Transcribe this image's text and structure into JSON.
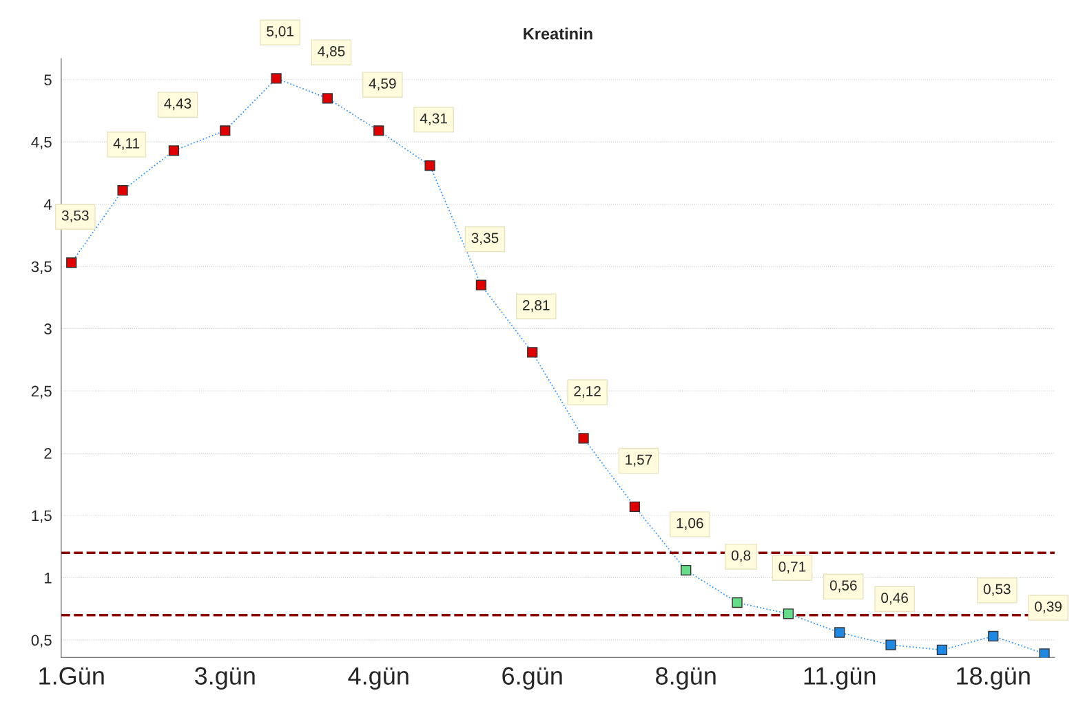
{
  "chart_data": {
    "type": "line",
    "title": "Kreatinin",
    "categories": [
      "1.Gün",
      null,
      null,
      "3.gün",
      null,
      null,
      "4.gün",
      null,
      null,
      "6.gün",
      null,
      null,
      "8.gün",
      null,
      null,
      "11.gün",
      null,
      null,
      "18.gün",
      null
    ],
    "series": [
      {
        "color": "#3399ff",
        "values": [
          3.53,
          4.11,
          4.43,
          4.59,
          5.01,
          4.85,
          4.59,
          4.31,
          3.35,
          2.81,
          2.12,
          1.57,
          1.06,
          0.8,
          0.71,
          0.56,
          0.46,
          0.42,
          0.53,
          0.39
        ],
        "colors": [
          "#e00000",
          "#e00000",
          "#e00000",
          "#e00000",
          "#e00000",
          "#e00000",
          "#e00000",
          "#e00000",
          "#e00000",
          "#e00000",
          "#e00000",
          "#e00000",
          "#66dd88",
          "#66dd88",
          "#66dd88",
          "#1e88e5",
          "#1e88e5",
          "#1e88e5",
          "#1e88e5",
          "#1e88e5"
        ],
        "value_labels": [
          "3,53",
          "4,11",
          "4,43",
          null,
          "5,01",
          "4,85",
          "4,59",
          "4,31",
          "3,35",
          "2,81",
          "2,12",
          "1,57",
          "1,06",
          "0,8",
          "0,71",
          "0,56",
          "0,46",
          null,
          "0,53",
          "0,39"
        ]
      }
    ],
    "ylim": [
      0.36,
      5.17
    ],
    "yticks": [
      {
        "value": 0.5,
        "label": "0,5"
      },
      {
        "value": 1,
        "label": "1"
      },
      {
        "value": 1.5,
        "label": "1,5"
      },
      {
        "value": 2,
        "label": "2"
      },
      {
        "value": 2.5,
        "label": "2,5"
      },
      {
        "value": 3,
        "label": "3"
      },
      {
        "value": 3.5,
        "label": "3,5"
      },
      {
        "value": 4,
        "label": "4"
      },
      {
        "value": 4.5,
        "label": "4,5"
      },
      {
        "value": 5,
        "label": "5"
      }
    ],
    "ref_lines": [
      {
        "axis": "y",
        "value": 1.2,
        "color": "#8b0000",
        "line_style": "dashed"
      },
      {
        "axis": "y",
        "value": 0.7,
        "color": "#8b0000",
        "line_style": "dashed"
      }
    ],
    "grid": "y",
    "marker": "square",
    "line_style": "dotted",
    "legend": false
  }
}
